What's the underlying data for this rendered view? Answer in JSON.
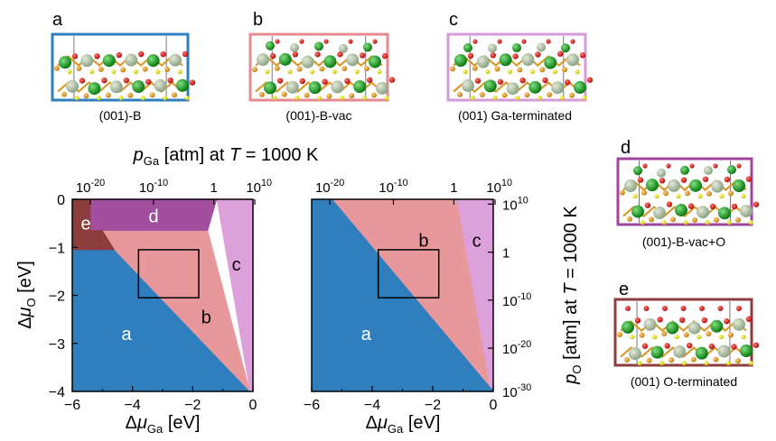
{
  "panels": [
    {
      "letter": "a",
      "caption": "(001)-B",
      "color": "#2f7fbf"
    },
    {
      "letter": "b",
      "caption": "(001)-B-vac",
      "color": "#e8898f"
    },
    {
      "letter": "c",
      "caption": "(001) Ga-terminated",
      "color": "#d79ad8"
    },
    {
      "letter": "d",
      "caption": "(001)-B-vac+O",
      "color": "#a0449c"
    },
    {
      "letter": "e",
      "caption": "(001) O-terminated",
      "color": "#8e3d3d"
    }
  ],
  "chart_data": [
    {
      "type": "phase-diagram",
      "name": "left",
      "xlabel": "Δμ_Ga [eV]",
      "ylabel": "Δμ_O [eV]",
      "top_label": "p_Ga [atm] at T = 1000 K",
      "xlim": [
        -6,
        0
      ],
      "ylim": [
        -4,
        0
      ],
      "x_ticks": [
        -6,
        -4,
        -2,
        0
      ],
      "y_ticks": [
        0,
        -1,
        -2,
        -3,
        -4
      ],
      "top_ticks": [
        {
          "label": "10^-20",
          "x": -5.4
        },
        {
          "label": "10^-10",
          "x": -3.3
        },
        {
          "label": "1",
          "x": -1.3
        },
        {
          "label": "10^10",
          "x": 0.2
        }
      ],
      "regions": [
        {
          "label": "a",
          "color": "#2f7fbf",
          "polygon": [
            [
              -6,
              -1.05
            ],
            [
              -4.6,
              -1.05
            ],
            [
              -0.1,
              -4
            ],
            [
              -6,
              -4
            ]
          ],
          "label_pos": [
            -4.2,
            -2.8
          ],
          "label_color": "#ffffff"
        },
        {
          "label": "b",
          "color": "#e8989a",
          "polygon": [
            [
              -4.6,
              -1.05
            ],
            [
              -5.0,
              -0.65
            ],
            [
              -1.5,
              -0.65
            ],
            [
              -0.1,
              -4
            ]
          ],
          "label_pos": [
            -1.55,
            -2.45
          ],
          "label_color": "#000000"
        },
        {
          "label": "c",
          "color": "#dca0da",
          "polygon": [
            [
              -1.2,
              0
            ],
            [
              0,
              0
            ],
            [
              0,
              -4
            ],
            [
              -0.1,
              -4
            ]
          ],
          "label_pos": [
            -0.55,
            -1.35
          ],
          "label_color": "#000000"
        },
        {
          "label": "d",
          "color": "#a24fa0",
          "polygon": [
            [
              -5.4,
              0
            ],
            [
              -1.2,
              0
            ],
            [
              -1.5,
              -0.65
            ],
            [
              -5.4,
              -0.65
            ]
          ],
          "label_pos": [
            -3.3,
            -0.35
          ],
          "label_color": "#ffffff"
        },
        {
          "label": "e",
          "color": "#8e3d3d",
          "polygon": [
            [
              -6,
              0
            ],
            [
              -5.4,
              0
            ],
            [
              -5.4,
              -0.65
            ],
            [
              -5.0,
              -0.65
            ],
            [
              -4.6,
              -1.05
            ],
            [
              -6,
              -1.05
            ]
          ],
          "label_pos": [
            -5.55,
            -0.5
          ],
          "label_color": "#ffffff"
        }
      ],
      "box": {
        "x": [
          -3.8,
          -1.8
        ],
        "y": [
          -1.05,
          -2.05
        ]
      }
    },
    {
      "type": "phase-diagram",
      "name": "right",
      "xlabel": "Δμ_Ga [eV]",
      "ylabel_right": "p_O [atm] at T = 1000 K",
      "xlim": [
        -6,
        0
      ],
      "ylim": [
        -4,
        0
      ],
      "x_ticks": [
        -6,
        -4,
        -2,
        0
      ],
      "top_ticks": [
        {
          "label": "10^-20",
          "x": -5.4
        },
        {
          "label": "10^-10",
          "x": -3.3
        },
        {
          "label": "1",
          "x": -1.3
        },
        {
          "label": "10^10",
          "x": 0.2
        }
      ],
      "right_ticks": [
        {
          "label": "10^10",
          "y": -0.1
        },
        {
          "label": "1",
          "y": -1.1
        },
        {
          "label": "10^-10",
          "y": -2.1
        },
        {
          "label": "10^-20",
          "y": -3.1
        },
        {
          "label": "10^-30",
          "y": -4.0
        }
      ],
      "regions": [
        {
          "label": "a",
          "color": "#2f7fbf",
          "polygon": [
            [
              -6,
              0
            ],
            [
              -5.3,
              0
            ],
            [
              -0.1,
              -3.9
            ],
            [
              0,
              -3.95
            ],
            [
              0,
              -4
            ],
            [
              -6,
              -4
            ]
          ],
          "label_pos": [
            -4.2,
            -2.8
          ],
          "label_color": "#ffffff"
        },
        {
          "label": "b",
          "color": "#e8989a",
          "polygon": [
            [
              -5.3,
              0
            ],
            [
              -1.2,
              0
            ],
            [
              -0.1,
              -3.9
            ]
          ],
          "label_pos": [
            -2.3,
            -0.85
          ],
          "label_color": "#000000"
        },
        {
          "label": "c",
          "color": "#dca0da",
          "polygon": [
            [
              -1.2,
              0
            ],
            [
              0,
              0
            ],
            [
              0,
              -3.95
            ],
            [
              -0.1,
              -3.9
            ]
          ],
          "label_pos": [
            -0.55,
            -0.85
          ],
          "label_color": "#000000"
        }
      ],
      "box": {
        "x": [
          -3.8,
          -1.8
        ],
        "y": [
          -1.05,
          -2.05
        ]
      }
    }
  ]
}
